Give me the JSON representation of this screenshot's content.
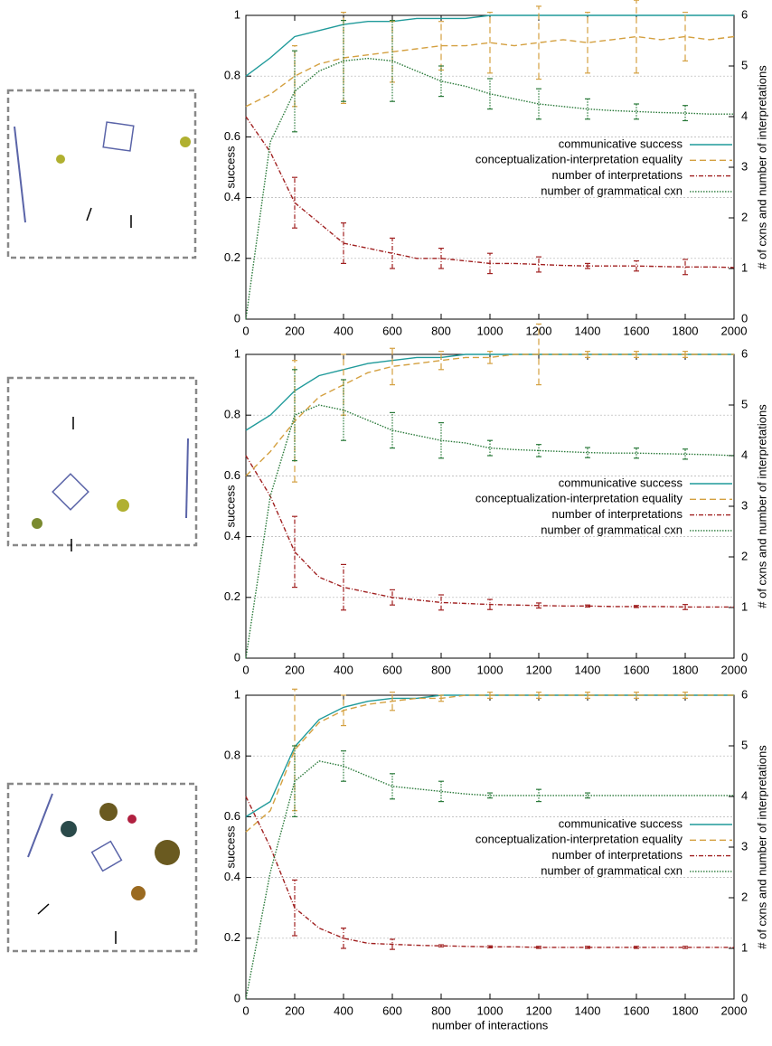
{
  "chart_data": [
    {
      "type": "line",
      "ylabel": "success",
      "y2label": "# of cxns and number of interpretations",
      "xlim": [
        0,
        2000
      ],
      "xticks": [
        0,
        200,
        400,
        600,
        800,
        1000,
        1200,
        1400,
        1600,
        1800,
        2000
      ],
      "ylim": [
        0,
        1
      ],
      "yticks": [
        0,
        0.2,
        0.4,
        0.6,
        0.8,
        1
      ],
      "y2lim": [
        0,
        6
      ],
      "y2ticks": [
        0,
        1,
        2,
        3,
        4,
        5,
        6
      ],
      "grid": true,
      "x": [
        0,
        100,
        200,
        300,
        400,
        500,
        600,
        700,
        800,
        900,
        1000,
        1100,
        1200,
        1300,
        1400,
        1500,
        1600,
        1700,
        1800,
        1900,
        2000
      ],
      "series": [
        {
          "name": "communicative success",
          "color": "#1f9a9a",
          "line_style": "solid",
          "values": [
            0.8,
            0.86,
            0.93,
            0.95,
            0.97,
            0.98,
            0.98,
            0.99,
            0.99,
            0.99,
            1,
            1,
            1,
            1,
            1,
            1,
            1,
            1,
            1,
            1,
            1
          ]
        },
        {
          "name": "conceptualization-interpretation equality",
          "color": "#d4a040",
          "line_style": "dashed",
          "values": [
            0.7,
            0.74,
            0.8,
            0.84,
            0.86,
            0.87,
            0.88,
            0.89,
            0.9,
            0.9,
            0.91,
            0.9,
            0.91,
            0.92,
            0.91,
            0.92,
            0.93,
            0.92,
            0.93,
            0.92,
            0.93
          ],
          "errors": [
            null,
            null,
            0.1,
            null,
            0.15,
            null,
            0.1,
            null,
            0.08,
            null,
            0.1,
            null,
            0.12,
            null,
            0.1,
            null,
            0.12,
            null,
            0.08,
            null,
            null
          ]
        },
        {
          "name": "number of interpretations",
          "color": "#a02020",
          "line_style": "dashdot",
          "axis": "y2",
          "values": [
            4.0,
            3.3,
            2.3,
            1.9,
            1.5,
            1.4,
            1.3,
            1.2,
            1.2,
            1.15,
            1.1,
            1.1,
            1.08,
            1.06,
            1.05,
            1.05,
            1.05,
            1.04,
            1.03,
            1.03,
            1.02
          ],
          "errors": [
            null,
            null,
            0.5,
            null,
            0.4,
            null,
            0.3,
            null,
            0.2,
            null,
            0.2,
            null,
            0.15,
            null,
            0.05,
            null,
            0.1,
            null,
            0.15,
            null,
            null
          ]
        },
        {
          "name": "number of grammatical cxn",
          "color": "#2a7a3a",
          "line_style": "dotted",
          "axis": "y2",
          "values": [
            0,
            3.5,
            4.5,
            4.9,
            5.1,
            5.15,
            5.1,
            4.9,
            4.7,
            4.6,
            4.45,
            4.35,
            4.25,
            4.2,
            4.15,
            4.12,
            4.1,
            4.08,
            4.07,
            4.05,
            4.05
          ],
          "errors": [
            null,
            null,
            0.8,
            null,
            0.8,
            null,
            0.8,
            null,
            0.3,
            null,
            0.3,
            null,
            0.3,
            null,
            0.2,
            null,
            0.15,
            null,
            0.15,
            null,
            null
          ]
        }
      ]
    },
    {
      "type": "line",
      "ylabel": "success",
      "y2label": "# of cxns and number of interpretations",
      "xlim": [
        0,
        2000
      ],
      "xticks": [
        0,
        200,
        400,
        600,
        800,
        1000,
        1200,
        1400,
        1600,
        1800,
        2000
      ],
      "ylim": [
        0,
        1
      ],
      "yticks": [
        0,
        0.2,
        0.4,
        0.6,
        0.8,
        1
      ],
      "y2lim": [
        0,
        6
      ],
      "y2ticks": [
        0,
        1,
        2,
        3,
        4,
        5,
        6
      ],
      "grid": true,
      "x": [
        0,
        100,
        200,
        300,
        400,
        500,
        600,
        700,
        800,
        900,
        1000,
        1100,
        1200,
        1300,
        1400,
        1500,
        1600,
        1700,
        1800,
        1900,
        2000
      ],
      "series": [
        {
          "name": "communicative success",
          "color": "#1f9a9a",
          "line_style": "solid",
          "values": [
            0.75,
            0.8,
            0.88,
            0.93,
            0.95,
            0.97,
            0.98,
            0.99,
            0.99,
            1,
            1,
            1,
            1,
            1,
            1,
            1,
            1,
            1,
            1,
            1,
            1
          ]
        },
        {
          "name": "conceptualization-interpretation equality",
          "color": "#d4a040",
          "line_style": "dashed",
          "values": [
            0.6,
            0.68,
            0.78,
            0.86,
            0.9,
            0.94,
            0.96,
            0.97,
            0.98,
            0.99,
            0.99,
            1,
            1,
            1,
            1,
            1,
            1,
            1,
            1,
            1,
            1
          ],
          "errors": [
            null,
            null,
            0.2,
            null,
            0.1,
            null,
            0.06,
            null,
            0.03,
            null,
            0.02,
            null,
            0.1,
            null,
            0.01,
            null,
            0.01,
            null,
            0.01,
            null,
            null
          ]
        },
        {
          "name": "number of interpretations",
          "color": "#a02020",
          "line_style": "dashdot",
          "axis": "y2",
          "values": [
            4.0,
            3.2,
            2.1,
            1.6,
            1.4,
            1.3,
            1.2,
            1.15,
            1.1,
            1.08,
            1.06,
            1.05,
            1.04,
            1.03,
            1.03,
            1.02,
            1.02,
            1.02,
            1.01,
            1.01,
            1.01
          ],
          "errors": [
            null,
            null,
            0.7,
            null,
            0.45,
            null,
            0.15,
            null,
            0.15,
            null,
            0.1,
            null,
            0.05,
            null,
            0.02,
            null,
            0.02,
            null,
            0.05,
            null,
            null
          ]
        },
        {
          "name": "number of grammatical cxn",
          "color": "#2a7a3a",
          "line_style": "dotted",
          "axis": "y2",
          "values": [
            0,
            3.2,
            4.8,
            5.0,
            4.9,
            4.7,
            4.5,
            4.4,
            4.3,
            4.25,
            4.15,
            4.12,
            4.1,
            4.08,
            4.06,
            4.05,
            4.05,
            4.04,
            4.03,
            4.02,
            4.0
          ],
          "errors": [
            null,
            null,
            0.9,
            null,
            0.6,
            null,
            0.35,
            null,
            0.35,
            null,
            0.15,
            null,
            0.12,
            null,
            0.1,
            null,
            0.1,
            null,
            0.1,
            null,
            null
          ]
        }
      ]
    },
    {
      "type": "line",
      "xlabel": "number of interactions",
      "ylabel": "success",
      "y2label": "# of cxns and number of interpretations",
      "xlim": [
        0,
        2000
      ],
      "xticks": [
        0,
        200,
        400,
        600,
        800,
        1000,
        1200,
        1400,
        1600,
        1800,
        2000
      ],
      "ylim": [
        0,
        1
      ],
      "yticks": [
        0,
        0.2,
        0.4,
        0.6,
        0.8,
        1
      ],
      "y2lim": [
        0,
        6
      ],
      "y2ticks": [
        0,
        1,
        2,
        3,
        4,
        5,
        6
      ],
      "grid": true,
      "x": [
        0,
        100,
        200,
        300,
        400,
        500,
        600,
        700,
        800,
        900,
        1000,
        1100,
        1200,
        1300,
        1400,
        1500,
        1600,
        1700,
        1800,
        1900,
        2000
      ],
      "series": [
        {
          "name": "communicative success",
          "color": "#1f9a9a",
          "line_style": "solid",
          "values": [
            0.6,
            0.65,
            0.83,
            0.92,
            0.96,
            0.98,
            0.99,
            0.99,
            1,
            1,
            1,
            1,
            1,
            1,
            1,
            1,
            1,
            1,
            1,
            1,
            1
          ]
        },
        {
          "name": "conceptualization-interpretation equality",
          "color": "#d4a040",
          "line_style": "dashed",
          "values": [
            0.55,
            0.62,
            0.82,
            0.91,
            0.95,
            0.97,
            0.98,
            0.99,
            0.99,
            1,
            1,
            1,
            1,
            1,
            1,
            1,
            1,
            1,
            1,
            1,
            1
          ],
          "errors": [
            null,
            null,
            0.2,
            null,
            0.05,
            null,
            0.03,
            null,
            0.01,
            null,
            0.01,
            null,
            0.01,
            null,
            0.01,
            null,
            0.01,
            null,
            0.01,
            null,
            null
          ]
        },
        {
          "name": "number of interpretations",
          "color": "#a02020",
          "line_style": "dashdot",
          "axis": "y2",
          "values": [
            4.0,
            3.0,
            1.8,
            1.4,
            1.2,
            1.1,
            1.08,
            1.06,
            1.05,
            1.04,
            1.03,
            1.03,
            1.02,
            1.02,
            1.02,
            1.02,
            1.02,
            1.02,
            1.02,
            1.02,
            1.02
          ],
          "errors": [
            null,
            null,
            0.55,
            null,
            0.2,
            null,
            0.1,
            null,
            0.02,
            null,
            0.02,
            null,
            0.02,
            null,
            0.02,
            null,
            0.02,
            null,
            0.02,
            null,
            null
          ]
        },
        {
          "name": "number of grammatical cxn",
          "color": "#2a7a3a",
          "line_style": "dotted",
          "axis": "y2",
          "values": [
            0,
            2.5,
            4.3,
            4.7,
            4.6,
            4.4,
            4.2,
            4.15,
            4.1,
            4.05,
            4.02,
            4.02,
            4.02,
            4.02,
            4.02,
            4.02,
            4.02,
            4.02,
            4.02,
            4.02,
            4.02
          ],
          "errors": [
            null,
            null,
            0.7,
            null,
            0.3,
            null,
            0.25,
            null,
            0.2,
            null,
            0.05,
            null,
            0.12,
            null,
            0.05,
            null,
            null,
            null,
            null,
            null,
            null
          ]
        }
      ]
    }
  ]
}
